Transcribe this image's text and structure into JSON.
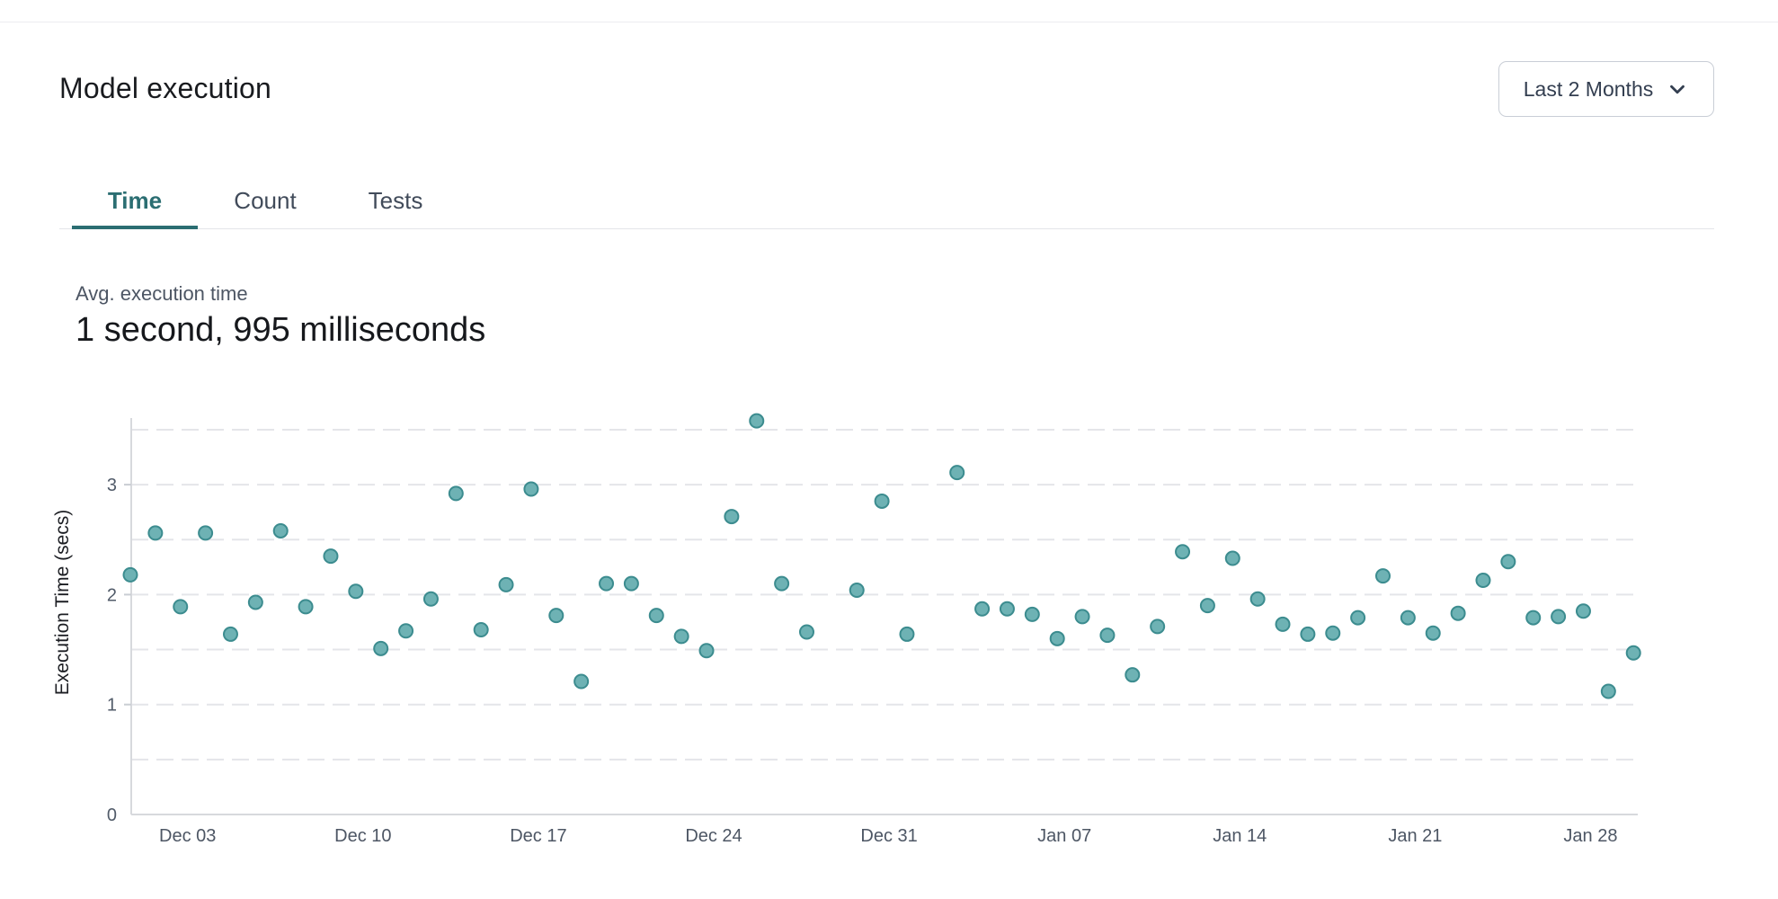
{
  "header": {
    "title": "Model execution",
    "date_range": {
      "value": "Last 2 Months",
      "icon": "chevron-down-icon"
    }
  },
  "tabs": {
    "items": [
      {
        "label": "Time",
        "active": true
      },
      {
        "label": "Count",
        "active": false
      },
      {
        "label": "Tests",
        "active": false
      }
    ]
  },
  "stat": {
    "label": "Avg. execution time",
    "value": "1 second, 995 milliseconds"
  },
  "colors": {
    "accent_teal": "#2b6e72",
    "point_fill": "#6eb2b4",
    "point_stroke": "#3c8c8f",
    "grid": "#e4e5e9",
    "axis": "#d7d9dd",
    "tick_text": "#515b69"
  },
  "chart_data": {
    "type": "scatter",
    "title": "",
    "xlabel": "",
    "ylabel": "Execution Time (secs)",
    "ylim": [
      0,
      3.67
    ],
    "y_ticks": [
      0,
      1,
      2,
      3
    ],
    "grid": "horizontal dashed lines every 0.5, legend none",
    "x_tick_labels": [
      "Dec 03",
      "Dec 10",
      "Dec 17",
      "Dec 24",
      "Dec 31",
      "Jan 07",
      "Jan 14",
      "Jan 21",
      "Jan 28"
    ],
    "x_tick_day_indices": [
      2,
      9,
      16,
      23,
      30,
      37,
      44,
      51,
      58
    ],
    "dates": [
      "Dec 01",
      "Dec 02",
      "Dec 03",
      "Dec 04",
      "Dec 05",
      "Dec 06",
      "Dec 07",
      "Dec 08",
      "Dec 09",
      "Dec 10",
      "Dec 11",
      "Dec 12",
      "Dec 13",
      "Dec 14",
      "Dec 15",
      "Dec 16",
      "Dec 17",
      "Dec 18",
      "Dec 19",
      "Dec 20",
      "Dec 21",
      "Dec 22",
      "Dec 23",
      "Dec 24",
      "Dec 25",
      "Dec 26",
      "Dec 27",
      "Dec 28",
      "Dec 29",
      "Dec 30",
      "Dec 31",
      "Jan 01",
      "Jan 02",
      "Jan 03",
      "Jan 04",
      "Jan 05",
      "Jan 06",
      "Jan 07",
      "Jan 08",
      "Jan 09",
      "Jan 10",
      "Jan 11",
      "Jan 12",
      "Jan 13",
      "Jan 14",
      "Jan 15",
      "Jan 16",
      "Jan 17",
      "Jan 18",
      "Jan 19",
      "Jan 20",
      "Jan 21",
      "Jan 22",
      "Jan 23",
      "Jan 24",
      "Jan 25",
      "Jan 26",
      "Jan 27",
      "Jan 28",
      "Jan 29",
      "Jan 30"
    ],
    "values": [
      2.18,
      2.56,
      1.89,
      2.56,
      1.64,
      1.93,
      2.58,
      1.89,
      2.35,
      2.03,
      1.51,
      1.67,
      1.96,
      2.92,
      1.68,
      2.09,
      2.96,
      1.81,
      1.21,
      2.1,
      2.1,
      1.81,
      1.62,
      1.49,
      2.71,
      3.58,
      2.1,
      1.66,
      null,
      2.04,
      2.85,
      1.64,
      null,
      3.11,
      1.87,
      1.87,
      1.82,
      1.6,
      1.8,
      1.63,
      1.27,
      1.71,
      2.39,
      1.9,
      2.33,
      1.96,
      1.73,
      1.64,
      1.65,
      1.79,
      2.17,
      1.79,
      1.65,
      1.83,
      2.13,
      2.3,
      1.79,
      1.8,
      1.85,
      1.12,
      1.47
    ]
  }
}
